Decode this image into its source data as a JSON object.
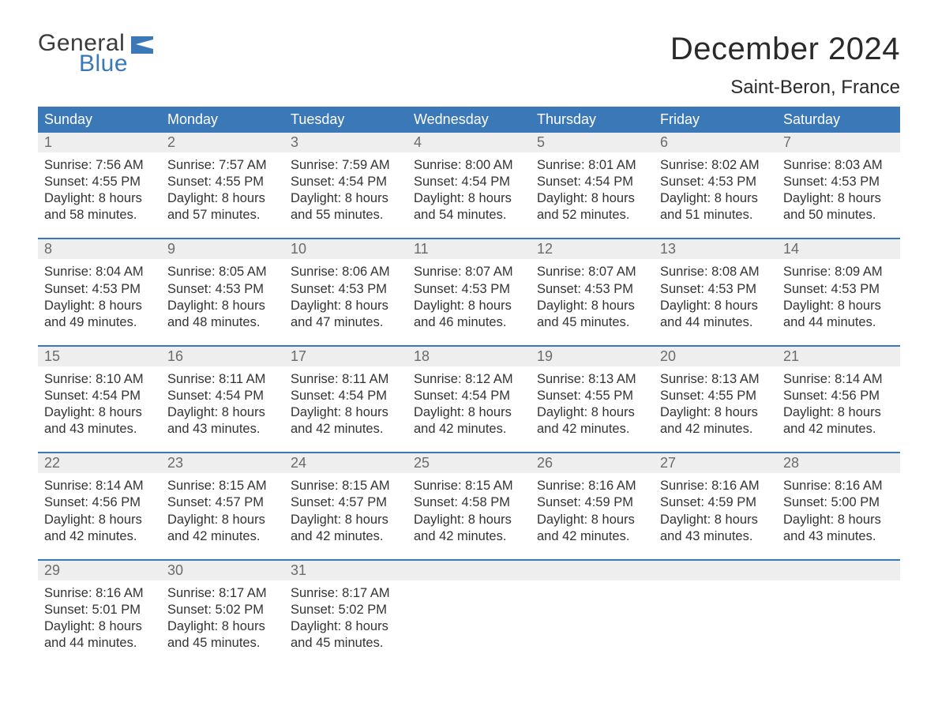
{
  "logo": {
    "text_top": "General",
    "text_bottom": "Blue",
    "top_color": "#3a3a3a",
    "bottom_color": "#3b78b8",
    "flag_color": "#3b78b8"
  },
  "title": "December 2024",
  "location": "Saint-Beron, France",
  "colors": {
    "header_bg": "#3b78b8",
    "header_text": "#ffffff",
    "daynum_bg": "#eeeeee",
    "daynum_text": "#6b6b6b",
    "body_text": "#333333",
    "week_divider": "#3b78b8",
    "page_bg": "#ffffff"
  },
  "typography": {
    "title_fontsize": 40,
    "location_fontsize": 24,
    "dayheader_fontsize": 18,
    "daynum_fontsize": 18,
    "cell_fontsize": 16.5,
    "logo_fontsize": 30
  },
  "day_headers": [
    "Sunday",
    "Monday",
    "Tuesday",
    "Wednesday",
    "Thursday",
    "Friday",
    "Saturday"
  ],
  "weeks": [
    [
      {
        "n": "1",
        "sunrise": "Sunrise: 7:56 AM",
        "sunset": "Sunset: 4:55 PM",
        "d1": "Daylight: 8 hours",
        "d2": "and 58 minutes."
      },
      {
        "n": "2",
        "sunrise": "Sunrise: 7:57 AM",
        "sunset": "Sunset: 4:55 PM",
        "d1": "Daylight: 8 hours",
        "d2": "and 57 minutes."
      },
      {
        "n": "3",
        "sunrise": "Sunrise: 7:59 AM",
        "sunset": "Sunset: 4:54 PM",
        "d1": "Daylight: 8 hours",
        "d2": "and 55 minutes."
      },
      {
        "n": "4",
        "sunrise": "Sunrise: 8:00 AM",
        "sunset": "Sunset: 4:54 PM",
        "d1": "Daylight: 8 hours",
        "d2": "and 54 minutes."
      },
      {
        "n": "5",
        "sunrise": "Sunrise: 8:01 AM",
        "sunset": "Sunset: 4:54 PM",
        "d1": "Daylight: 8 hours",
        "d2": "and 52 minutes."
      },
      {
        "n": "6",
        "sunrise": "Sunrise: 8:02 AM",
        "sunset": "Sunset: 4:53 PM",
        "d1": "Daylight: 8 hours",
        "d2": "and 51 minutes."
      },
      {
        "n": "7",
        "sunrise": "Sunrise: 8:03 AM",
        "sunset": "Sunset: 4:53 PM",
        "d1": "Daylight: 8 hours",
        "d2": "and 50 minutes."
      }
    ],
    [
      {
        "n": "8",
        "sunrise": "Sunrise: 8:04 AM",
        "sunset": "Sunset: 4:53 PM",
        "d1": "Daylight: 8 hours",
        "d2": "and 49 minutes."
      },
      {
        "n": "9",
        "sunrise": "Sunrise: 8:05 AM",
        "sunset": "Sunset: 4:53 PM",
        "d1": "Daylight: 8 hours",
        "d2": "and 48 minutes."
      },
      {
        "n": "10",
        "sunrise": "Sunrise: 8:06 AM",
        "sunset": "Sunset: 4:53 PM",
        "d1": "Daylight: 8 hours",
        "d2": "and 47 minutes."
      },
      {
        "n": "11",
        "sunrise": "Sunrise: 8:07 AM",
        "sunset": "Sunset: 4:53 PM",
        "d1": "Daylight: 8 hours",
        "d2": "and 46 minutes."
      },
      {
        "n": "12",
        "sunrise": "Sunrise: 8:07 AM",
        "sunset": "Sunset: 4:53 PM",
        "d1": "Daylight: 8 hours",
        "d2": "and 45 minutes."
      },
      {
        "n": "13",
        "sunrise": "Sunrise: 8:08 AM",
        "sunset": "Sunset: 4:53 PM",
        "d1": "Daylight: 8 hours",
        "d2": "and 44 minutes."
      },
      {
        "n": "14",
        "sunrise": "Sunrise: 8:09 AM",
        "sunset": "Sunset: 4:53 PM",
        "d1": "Daylight: 8 hours",
        "d2": "and 44 minutes."
      }
    ],
    [
      {
        "n": "15",
        "sunrise": "Sunrise: 8:10 AM",
        "sunset": "Sunset: 4:54 PM",
        "d1": "Daylight: 8 hours",
        "d2": "and 43 minutes."
      },
      {
        "n": "16",
        "sunrise": "Sunrise: 8:11 AM",
        "sunset": "Sunset: 4:54 PM",
        "d1": "Daylight: 8 hours",
        "d2": "and 43 minutes."
      },
      {
        "n": "17",
        "sunrise": "Sunrise: 8:11 AM",
        "sunset": "Sunset: 4:54 PM",
        "d1": "Daylight: 8 hours",
        "d2": "and 42 minutes."
      },
      {
        "n": "18",
        "sunrise": "Sunrise: 8:12 AM",
        "sunset": "Sunset: 4:54 PM",
        "d1": "Daylight: 8 hours",
        "d2": "and 42 minutes."
      },
      {
        "n": "19",
        "sunrise": "Sunrise: 8:13 AM",
        "sunset": "Sunset: 4:55 PM",
        "d1": "Daylight: 8 hours",
        "d2": "and 42 minutes."
      },
      {
        "n": "20",
        "sunrise": "Sunrise: 8:13 AM",
        "sunset": "Sunset: 4:55 PM",
        "d1": "Daylight: 8 hours",
        "d2": "and 42 minutes."
      },
      {
        "n": "21",
        "sunrise": "Sunrise: 8:14 AM",
        "sunset": "Sunset: 4:56 PM",
        "d1": "Daylight: 8 hours",
        "d2": "and 42 minutes."
      }
    ],
    [
      {
        "n": "22",
        "sunrise": "Sunrise: 8:14 AM",
        "sunset": "Sunset: 4:56 PM",
        "d1": "Daylight: 8 hours",
        "d2": "and 42 minutes."
      },
      {
        "n": "23",
        "sunrise": "Sunrise: 8:15 AM",
        "sunset": "Sunset: 4:57 PM",
        "d1": "Daylight: 8 hours",
        "d2": "and 42 minutes."
      },
      {
        "n": "24",
        "sunrise": "Sunrise: 8:15 AM",
        "sunset": "Sunset: 4:57 PM",
        "d1": "Daylight: 8 hours",
        "d2": "and 42 minutes."
      },
      {
        "n": "25",
        "sunrise": "Sunrise: 8:15 AM",
        "sunset": "Sunset: 4:58 PM",
        "d1": "Daylight: 8 hours",
        "d2": "and 42 minutes."
      },
      {
        "n": "26",
        "sunrise": "Sunrise: 8:16 AM",
        "sunset": "Sunset: 4:59 PM",
        "d1": "Daylight: 8 hours",
        "d2": "and 42 minutes."
      },
      {
        "n": "27",
        "sunrise": "Sunrise: 8:16 AM",
        "sunset": "Sunset: 4:59 PM",
        "d1": "Daylight: 8 hours",
        "d2": "and 43 minutes."
      },
      {
        "n": "28",
        "sunrise": "Sunrise: 8:16 AM",
        "sunset": "Sunset: 5:00 PM",
        "d1": "Daylight: 8 hours",
        "d2": "and 43 minutes."
      }
    ],
    [
      {
        "n": "29",
        "sunrise": "Sunrise: 8:16 AM",
        "sunset": "Sunset: 5:01 PM",
        "d1": "Daylight: 8 hours",
        "d2": "and 44 minutes."
      },
      {
        "n": "30",
        "sunrise": "Sunrise: 8:17 AM",
        "sunset": "Sunset: 5:02 PM",
        "d1": "Daylight: 8 hours",
        "d2": "and 45 minutes."
      },
      {
        "n": "31",
        "sunrise": "Sunrise: 8:17 AM",
        "sunset": "Sunset: 5:02 PM",
        "d1": "Daylight: 8 hours",
        "d2": "and 45 minutes."
      },
      {
        "n": "",
        "sunrise": "",
        "sunset": "",
        "d1": "",
        "d2": ""
      },
      {
        "n": "",
        "sunrise": "",
        "sunset": "",
        "d1": "",
        "d2": ""
      },
      {
        "n": "",
        "sunrise": "",
        "sunset": "",
        "d1": "",
        "d2": ""
      },
      {
        "n": "",
        "sunrise": "",
        "sunset": "",
        "d1": "",
        "d2": ""
      }
    ]
  ]
}
